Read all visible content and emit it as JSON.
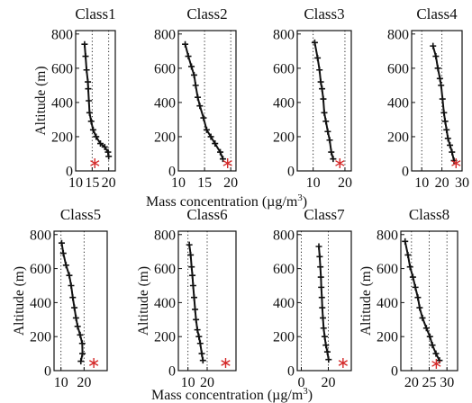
{
  "figure": {
    "xlabel_top": "Mass concentration (µg/m",
    "xlabel_bottom": "Mass concentration (µg/m",
    "xlabel_unit_exponent": "3",
    "xlabel_close": ")"
  },
  "chart_data": [
    {
      "type": "line",
      "title": "Class1",
      "ylabel": "Altitude (m)",
      "xlim": [
        10,
        22
      ],
      "ylim": [
        0,
        820
      ],
      "xticks": [
        10,
        15,
        20
      ],
      "yticks": [
        0,
        200,
        400,
        600,
        800
      ],
      "series": [
        {
          "x": [
            12.7,
            13.0,
            13.3,
            13.7,
            13.8,
            14.0,
            14.2,
            14.7,
            15.3,
            16.2,
            17.5,
            18.8,
            19.8,
            20.0
          ],
          "y": [
            740,
            670,
            590,
            520,
            480,
            410,
            340,
            290,
            240,
            200,
            160,
            140,
            110,
            85
          ]
        }
      ],
      "surface_point": {
        "x": 15.8,
        "y": 45
      }
    },
    {
      "type": "line",
      "title": "Class2",
      "ylabel": "",
      "xlim": [
        10,
        21
      ],
      "ylim": [
        0,
        820
      ],
      "xticks": [
        10,
        15,
        20
      ],
      "yticks": [
        0,
        200,
        400,
        600,
        800
      ],
      "series": [
        {
          "x": [
            11.3,
            11.9,
            12.5,
            13.0,
            13.3,
            13.7,
            14.1,
            14.8,
            15.4,
            16.2,
            17.0,
            18.0,
            18.5
          ],
          "y": [
            740,
            670,
            610,
            560,
            500,
            430,
            380,
            310,
            240,
            200,
            160,
            110,
            70
          ]
        }
      ],
      "surface_point": {
        "x": 19.4,
        "y": 45
      }
    },
    {
      "type": "line",
      "title": "Class3",
      "ylabel": "",
      "xlim": [
        5,
        22
      ],
      "ylim": [
        0,
        820
      ],
      "xticks": [
        10,
        20
      ],
      "yticks": [
        0,
        200,
        400,
        600,
        800
      ],
      "series": [
        {
          "x": [
            10.5,
            11.4,
            12.0,
            12.4,
            12.8,
            13.2,
            13.5,
            14.0,
            14.6,
            15.2,
            15.7,
            16.3
          ],
          "y": [
            750,
            660,
            590,
            520,
            480,
            420,
            340,
            290,
            230,
            180,
            110,
            70
          ]
        }
      ],
      "surface_point": {
        "x": 18.4,
        "y": 45
      }
    },
    {
      "type": "line",
      "title": "Class4",
      "ylabel": "",
      "xlim": [
        5,
        30
      ],
      "ylim": [
        0,
        820
      ],
      "xticks": [
        10,
        20,
        30
      ],
      "yticks": [
        0,
        200,
        400,
        600,
        800
      ],
      "series": [
        {
          "x": [
            15.6,
            17.0,
            18.0,
            19.0,
            19.6,
            20.3,
            21.0,
            21.6,
            22.3,
            23.0,
            24.0,
            25.0,
            26.0
          ],
          "y": [
            730,
            670,
            600,
            540,
            500,
            420,
            340,
            290,
            240,
            190,
            150,
            110,
            60
          ]
        }
      ],
      "surface_point": {
        "x": 27.0,
        "y": 45
      }
    },
    {
      "type": "line",
      "title": "Class5",
      "ylabel": "Altitude (m)",
      "xlim": [
        7,
        30
      ],
      "ylim": [
        0,
        820
      ],
      "xticks": [
        10,
        20
      ],
      "yticks": [
        0,
        200,
        400,
        600,
        800
      ],
      "series": [
        {
          "x": [
            10.3,
            11.0,
            12.2,
            13.6,
            14.4,
            15.1,
            15.8,
            16.5,
            17.2,
            18.3,
            19.2,
            19.3,
            18.6
          ],
          "y": [
            750,
            690,
            620,
            560,
            500,
            430,
            370,
            310,
            260,
            210,
            160,
            100,
            55
          ]
        }
      ],
      "surface_point": {
        "x": 24.2,
        "y": 45
      }
    },
    {
      "type": "line",
      "title": "Class6",
      "ylabel": "Altitude (m)",
      "xlim": [
        5,
        35
      ],
      "ylim": [
        0,
        820
      ],
      "xticks": [
        10,
        20
      ],
      "yticks": [
        0,
        200,
        400,
        600,
        800
      ],
      "series": [
        {
          "x": [
            10.7,
            11.4,
            11.9,
            12.3,
            12.7,
            13.2,
            13.7,
            14.2,
            14.9,
            15.7,
            16.4,
            17.2,
            17.8
          ],
          "y": [
            740,
            680,
            610,
            560,
            500,
            430,
            360,
            300,
            240,
            200,
            160,
            100,
            60
          ]
        }
      ],
      "surface_point": {
        "x": 29.6,
        "y": 45
      }
    },
    {
      "type": "line",
      "title": "Class7",
      "ylabel": "",
      "xlim": [
        -3,
        37
      ],
      "ylim": [
        0,
        820
      ],
      "xticks": [
        0,
        20
      ],
      "yticks": [
        0,
        200,
        400,
        600,
        800
      ],
      "series": [
        {
          "x": [
            13.0,
            13.6,
            14.1,
            14.5,
            14.8,
            15.2,
            15.5,
            16.0,
            16.5,
            17.3,
            18.2,
            19.3,
            20.2
          ],
          "y": [
            730,
            670,
            610,
            550,
            490,
            430,
            370,
            310,
            250,
            200,
            150,
            110,
            65
          ]
        }
      ],
      "surface_point": {
        "x": 30.9,
        "y": 45
      }
    },
    {
      "type": "line",
      "title": "Class8",
      "ylabel": "Altitude (m)",
      "xlim": [
        17,
        33
      ],
      "ylim": [
        0,
        820
      ],
      "xticks": [
        20,
        25,
        30
      ],
      "yticks": [
        0,
        200,
        400,
        600,
        800
      ],
      "series": [
        {
          "x": [
            18.2,
            19.0,
            19.6,
            20.4,
            21.1,
            21.8,
            22.3,
            23.1,
            24.2,
            25.2,
            25.9,
            26.9,
            27.9
          ],
          "y": [
            760,
            680,
            610,
            550,
            490,
            430,
            370,
            310,
            250,
            200,
            150,
            100,
            60
          ]
        }
      ],
      "surface_point": {
        "x": 27.0,
        "y": 40
      }
    }
  ]
}
